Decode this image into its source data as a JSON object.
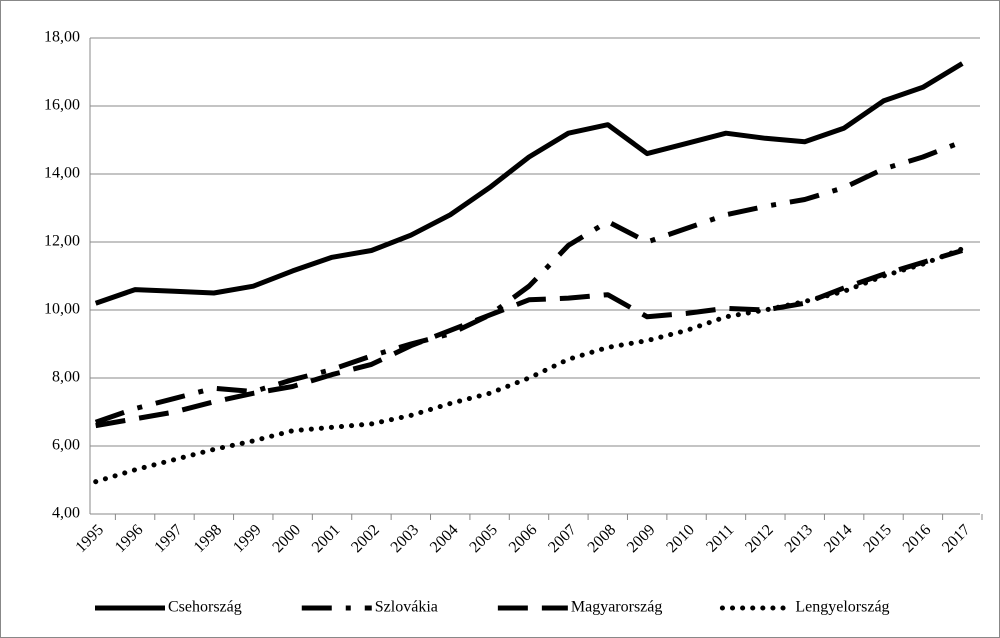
{
  "chart_data": {
    "type": "line",
    "categories": [
      "1995",
      "1996",
      "1997",
      "1998",
      "1999",
      "2000",
      "2001",
      "2002",
      "2003",
      "2004",
      "2005",
      "2006",
      "2007",
      "2008",
      "2009",
      "2010",
      "2011",
      "2012",
      "2013",
      "2014",
      "2015",
      "2016",
      "2017"
    ],
    "series": [
      {
        "name": "Csehország",
        "color": "#000000",
        "style": "solid",
        "values": [
          10.2,
          10.6,
          10.55,
          10.5,
          10.7,
          11.15,
          11.55,
          11.75,
          12.2,
          12.8,
          13.6,
          14.5,
          15.2,
          15.45,
          14.6,
          14.9,
          15.2,
          15.05,
          14.95,
          15.35,
          16.15,
          16.55,
          17.25
        ]
      },
      {
        "name": "Szlovákia",
        "color": "#000000",
        "style": "dash-dot",
        "values": [
          6.7,
          7.1,
          7.4,
          7.7,
          7.6,
          7.95,
          8.25,
          8.65,
          9.0,
          9.3,
          9.85,
          10.7,
          11.9,
          12.6,
          12.0,
          12.4,
          12.8,
          13.05,
          13.25,
          13.6,
          14.15,
          14.5,
          14.95
        ]
      },
      {
        "name": "Magyarország",
        "color": "#000000",
        "style": "dash",
        "values": [
          6.6,
          6.8,
          7.0,
          7.3,
          7.55,
          7.75,
          8.1,
          8.4,
          8.95,
          9.4,
          9.85,
          10.3,
          10.35,
          10.45,
          9.8,
          9.9,
          10.05,
          10.0,
          10.2,
          10.65,
          11.05,
          11.4,
          11.75
        ]
      },
      {
        "name": "Lengyelország",
        "color": "#000000",
        "style": "dot",
        "values": [
          4.95,
          5.3,
          5.6,
          5.9,
          6.15,
          6.45,
          6.55,
          6.65,
          6.9,
          7.25,
          7.55,
          8.0,
          8.55,
          8.9,
          9.1,
          9.4,
          9.8,
          10.0,
          10.25,
          10.55,
          11.0,
          11.35,
          11.8
        ]
      }
    ],
    "ylim": [
      4,
      18
    ],
    "yticks": [
      {
        "value": 4,
        "label": "4,00"
      },
      {
        "value": 6,
        "label": "6,00"
      },
      {
        "value": 8,
        "label": "8,00"
      },
      {
        "value": 10,
        "label": "10,00"
      },
      {
        "value": 12,
        "label": "12,00"
      },
      {
        "value": 14,
        "label": "14,00"
      },
      {
        "value": 16,
        "label": "16,00"
      },
      {
        "value": 18,
        "label": "18,00"
      }
    ],
    "grid": true,
    "legend": "bottom"
  }
}
